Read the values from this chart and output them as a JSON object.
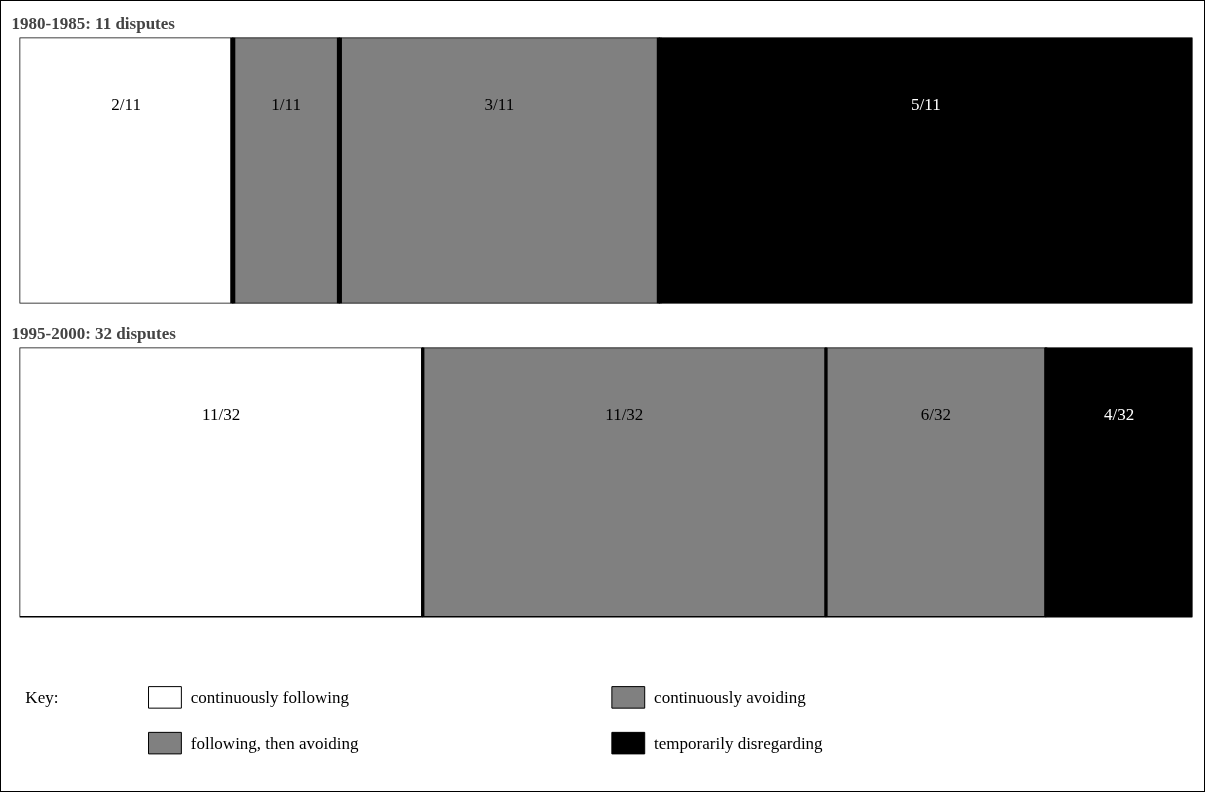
{
  "chart_data": [
    {
      "type": "bar",
      "title": "1980-1985: 11 disputes",
      "orientation": "horizontal",
      "stacked": true,
      "categories": [
        null
      ],
      "series": [
        {
          "color": "#ffffff",
          "values": [
            2
          ],
          "value_labels": [
            "2/11"
          ]
        },
        {
          "color": "#808080",
          "values": [
            1
          ],
          "value_labels": [
            "1/11"
          ]
        },
        {
          "color": "#808080",
          "values": [
            3
          ],
          "value_labels": [
            "3/11"
          ]
        },
        {
          "color": "#000000",
          "values": [
            5
          ],
          "value_labels": [
            "5/11"
          ]
        }
      ]
    },
    {
      "type": "bar",
      "title": "1995-2000: 32 disputes",
      "orientation": "horizontal",
      "stacked": true,
      "categories": [
        null
      ],
      "legend": "bottom",
      "legend_title": "Key:",
      "series": [
        {
          "name": "continuously following",
          "color": "#ffffff",
          "values": [
            11
          ],
          "value_labels": [
            "11/32"
          ]
        },
        {
          "name": "following, then avoiding",
          "color": "#808080",
          "values": [
            11
          ],
          "value_labels": [
            "11/32"
          ]
        },
        {
          "name": "continuously avoiding",
          "color": "#808080",
          "values": [
            6
          ],
          "value_labels": [
            "6/32"
          ]
        },
        {
          "name": "temporarily disregarding",
          "color": "#000000",
          "values": [
            4
          ],
          "value_labels": [
            "4/32"
          ]
        }
      ]
    }
  ]
}
